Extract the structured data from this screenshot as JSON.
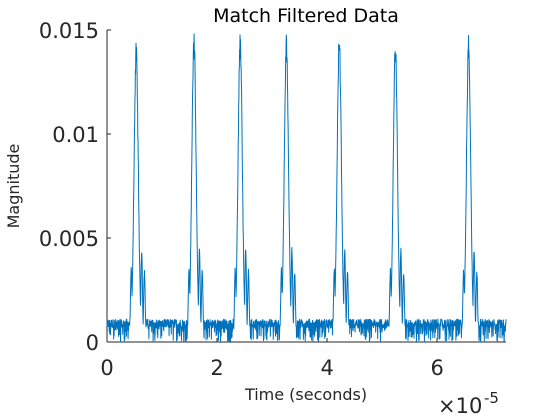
{
  "chart_data": {
    "type": "line",
    "title": "Match Filtered Data",
    "xlabel": "Time (seconds)",
    "ylabel": "Magnitude",
    "x_exponent_label": "×10",
    "x_exponent_power": "-5",
    "x_scale": 1e-05,
    "xlim": [
      0,
      7.25
    ],
    "ylim": [
      0,
      0.015
    ],
    "xticks": [
      0,
      2,
      4,
      6
    ],
    "xtick_labels": [
      "0",
      "2",
      "4",
      "6"
    ],
    "yticks": [
      0,
      0.005,
      0.01,
      0.015
    ],
    "ytick_labels": [
      "0",
      "0.005",
      "0.01",
      "0.015"
    ],
    "grid": false,
    "legend": "none",
    "series_color": "#0072bd",
    "noise_floor_max": 0.0011,
    "pulses": [
      {
        "x": 0.53,
        "peak": 0.0144
      },
      {
        "x": 1.58,
        "peak": 0.015
      },
      {
        "x": 2.42,
        "peak": 0.015
      },
      {
        "x": 3.26,
        "peak": 0.0148
      },
      {
        "x": 4.22,
        "peak": 0.015
      },
      {
        "x": 5.24,
        "peak": 0.0146
      },
      {
        "x": 6.57,
        "peak": 0.0148
      }
    ]
  }
}
